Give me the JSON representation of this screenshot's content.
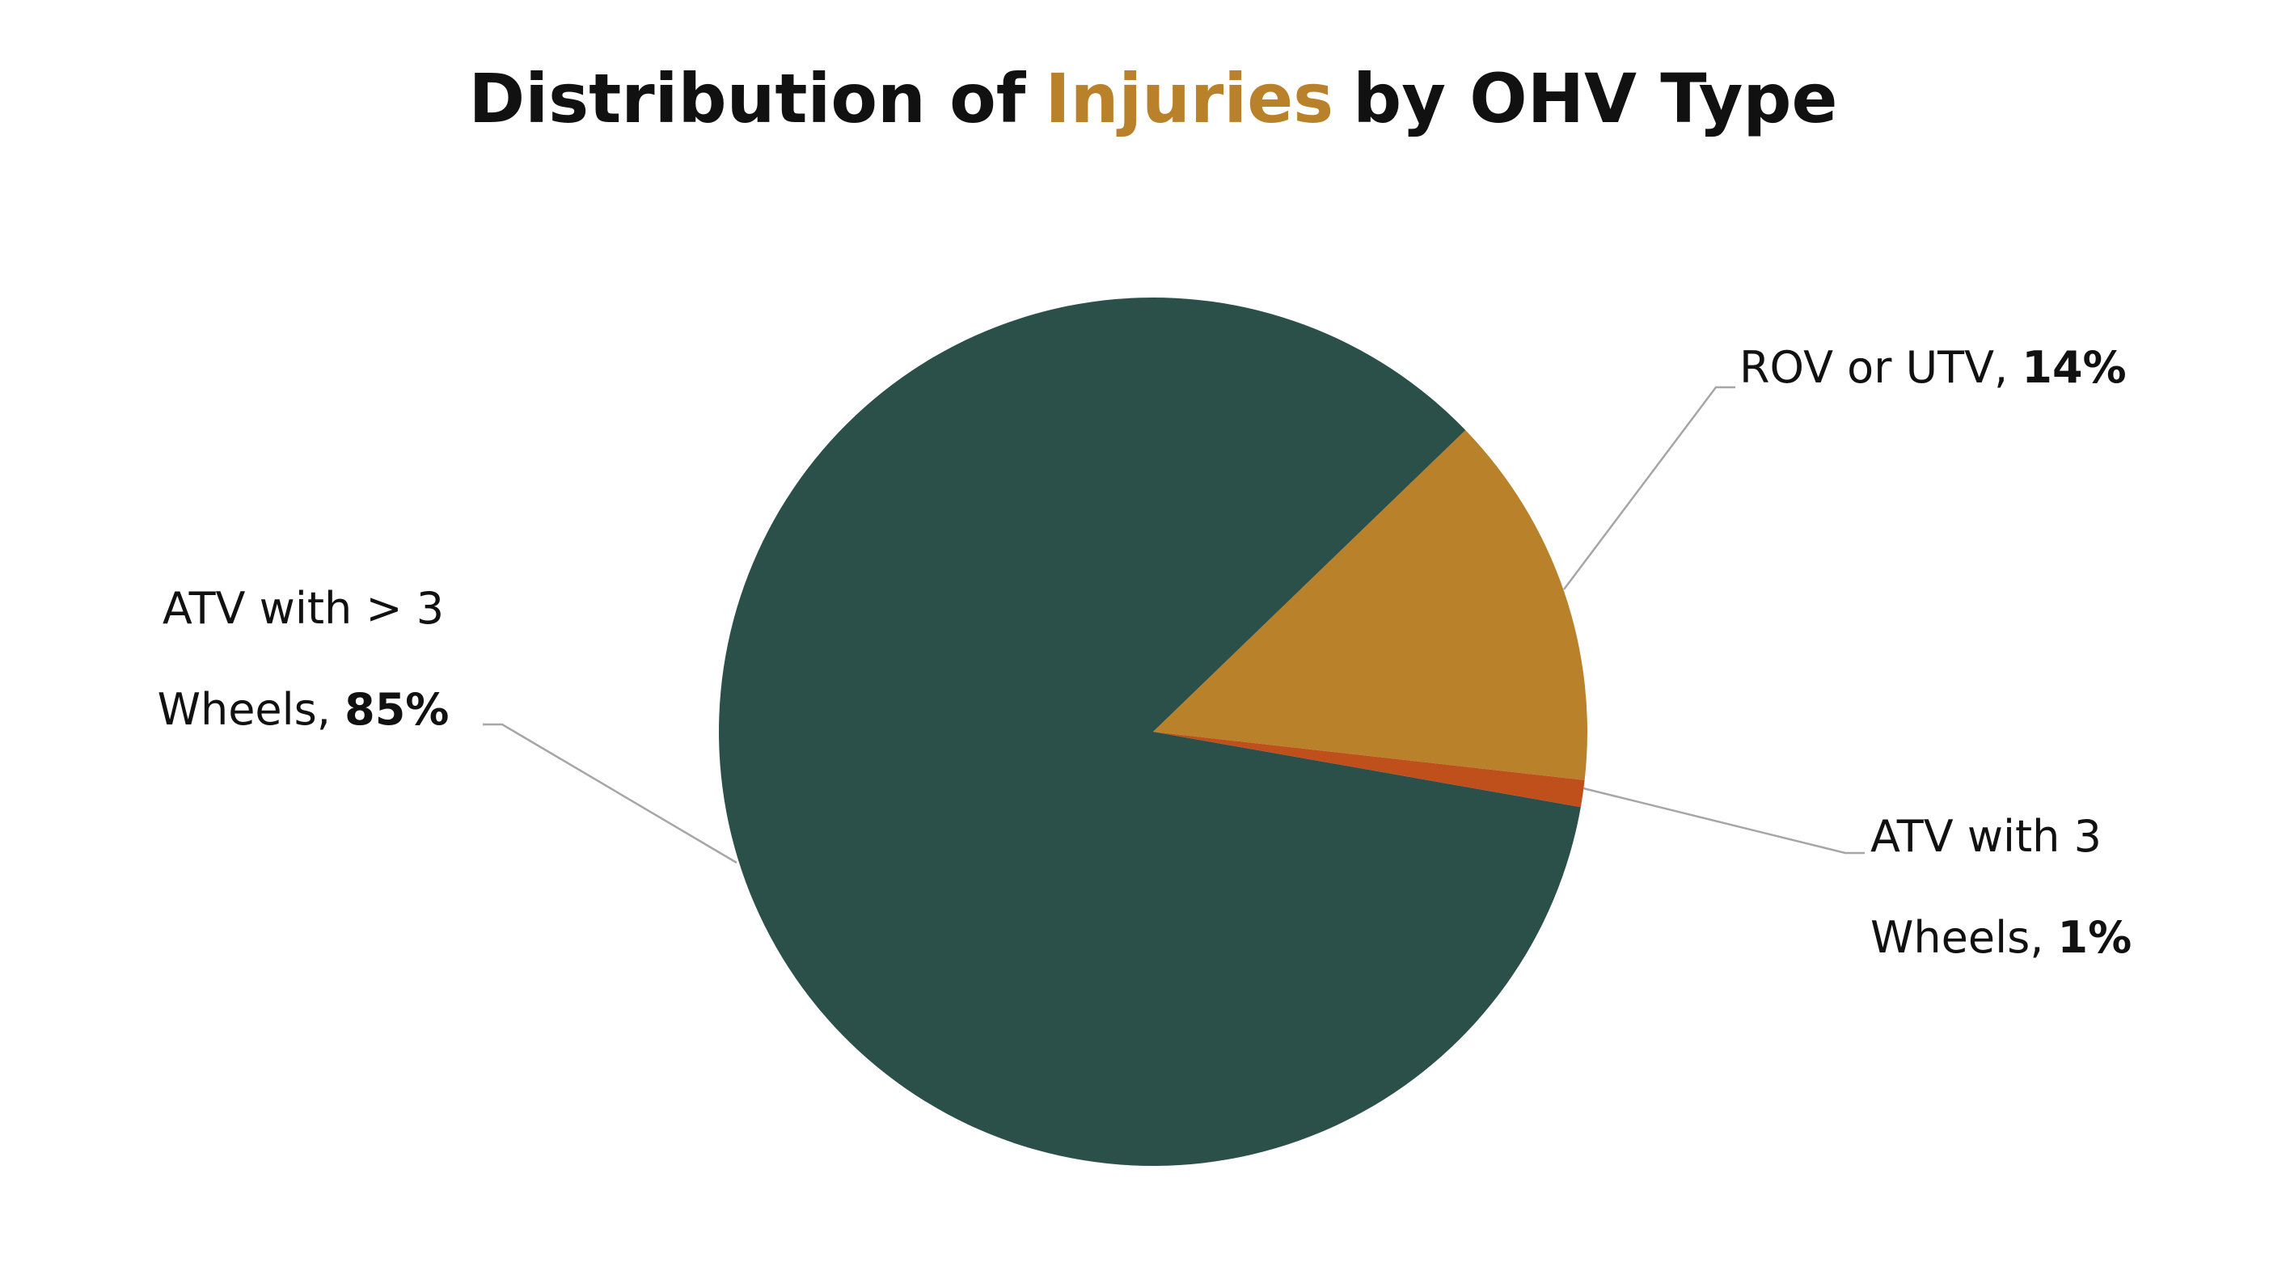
{
  "chart_data": {
    "type": "pie",
    "title": {
      "before": "Distribution of",
      "highlight": "Injuries",
      "after": "by OHV Type"
    },
    "title_highlight_color": "#b9822a",
    "categories": [
      "ROV or UTV",
      "ATV with 3 Wheels",
      "ATV with > 3 Wheels"
    ],
    "values": [
      14,
      1,
      85
    ],
    "value_labels": [
      "14%",
      "1%",
      "85%"
    ],
    "label_separator": ",",
    "colors": [
      "#b9822a",
      "#c0501b",
      "#2a5049"
    ]
  }
}
